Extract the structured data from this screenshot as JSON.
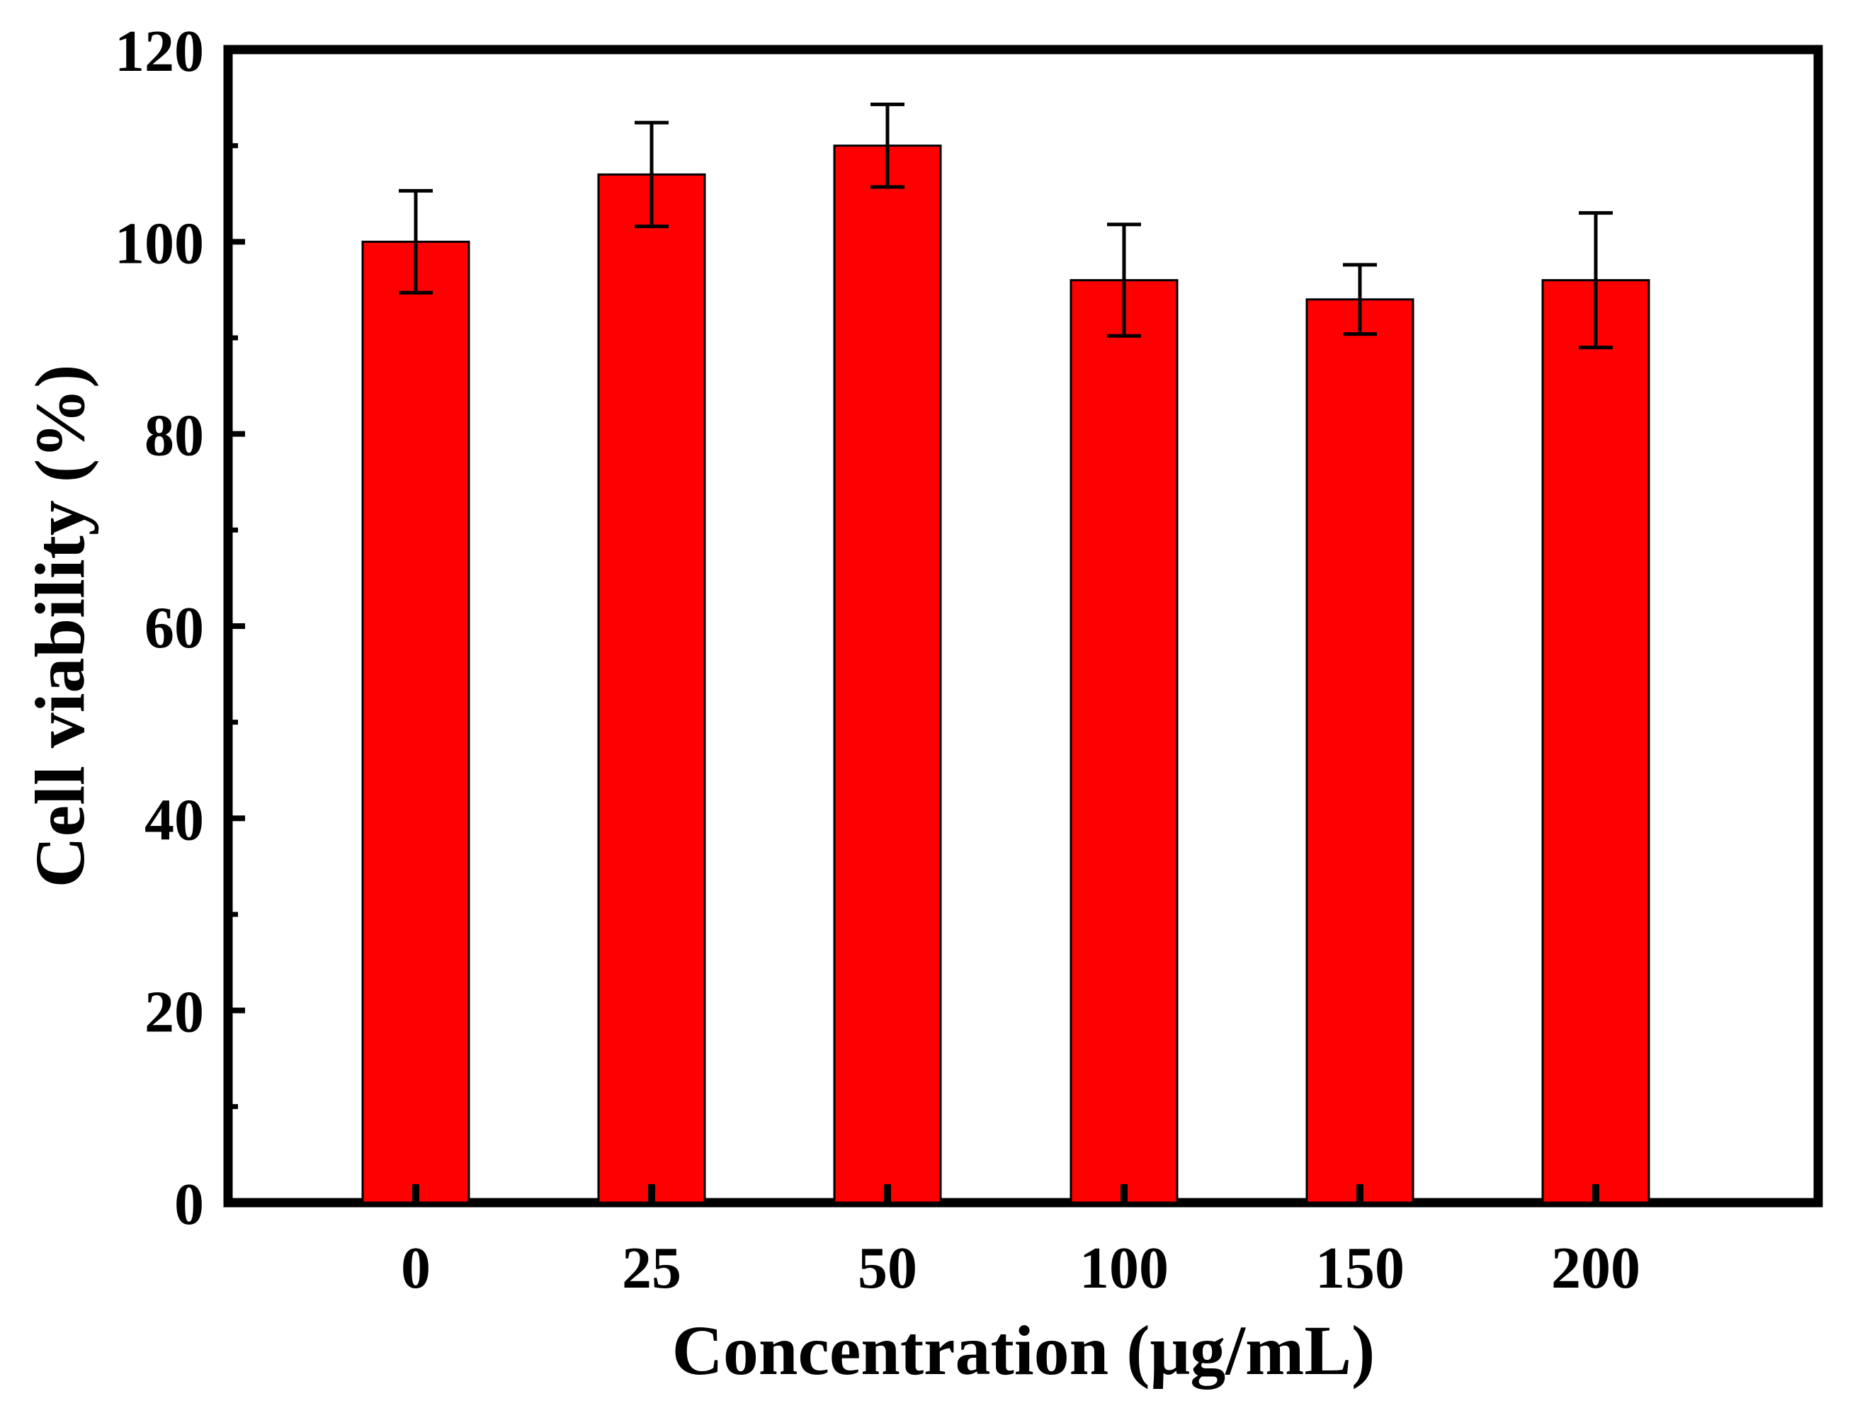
{
  "colors": {
    "bar_fill": "#ff0000",
    "bar_stroke": "#000000",
    "axis": "#000000",
    "background": "#ffffff"
  },
  "chart_data": {
    "type": "bar",
    "title": "",
    "xlabel": "Concentration (μg/mL)",
    "ylabel": "Cell viability (%)",
    "categories": [
      "0",
      "25",
      "50",
      "100",
      "150",
      "200"
    ],
    "series": [
      {
        "name": "Cell viability",
        "values": [
          100,
          107,
          110,
          96,
          94,
          96
        ],
        "errors": [
          5.3,
          5.4,
          4.3,
          5.8,
          3.6,
          7.0
        ]
      }
    ],
    "ylim": [
      0,
      120
    ],
    "yticks": [
      0,
      20,
      40,
      60,
      80,
      100,
      120
    ],
    "grid": false,
    "legend": "none"
  }
}
